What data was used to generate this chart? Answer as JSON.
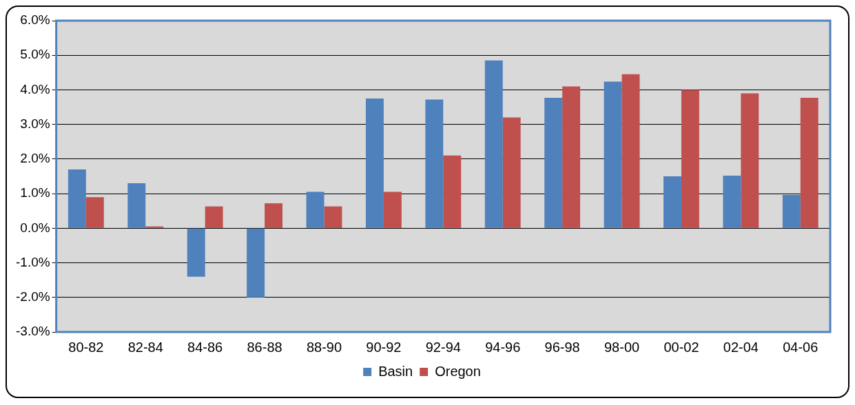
{
  "chart_data": {
    "type": "bar",
    "categories": [
      "80-82",
      "82-84",
      "84-86",
      "86-88",
      "88-90",
      "90-92",
      "92-94",
      "94-96",
      "96-98",
      "98-00",
      "00-02",
      "02-04",
      "04-06"
    ],
    "series": [
      {
        "name": "Basin",
        "color": "#4f81bd",
        "values": [
          1.7,
          1.3,
          -1.4,
          -2.0,
          1.05,
          3.75,
          3.72,
          4.85,
          3.77,
          4.24,
          1.5,
          1.52,
          0.96
        ]
      },
      {
        "name": "Oregon",
        "color": "#c0504d",
        "values": [
          0.9,
          0.05,
          0.63,
          0.72,
          0.63,
          1.05,
          2.1,
          3.2,
          4.1,
          4.45,
          4.0,
          3.9,
          3.77
        ]
      }
    ],
    "ylim": [
      -3,
      6
    ],
    "yticks": [
      {
        "value": -3,
        "label": "-3.0%"
      },
      {
        "value": -2,
        "label": "-2.0%"
      },
      {
        "value": -1,
        "label": "-1.0%"
      },
      {
        "value": 0,
        "label": "0.0%"
      },
      {
        "value": 1,
        "label": "1.0%"
      },
      {
        "value": 2,
        "label": "2.0%"
      },
      {
        "value": 3,
        "label": "3.0%"
      },
      {
        "value": 4,
        "label": "4.0%"
      },
      {
        "value": 5,
        "label": "5.0%"
      },
      {
        "value": 6,
        "label": "6.0%"
      }
    ],
    "grid": "y",
    "legend": "bottom"
  }
}
